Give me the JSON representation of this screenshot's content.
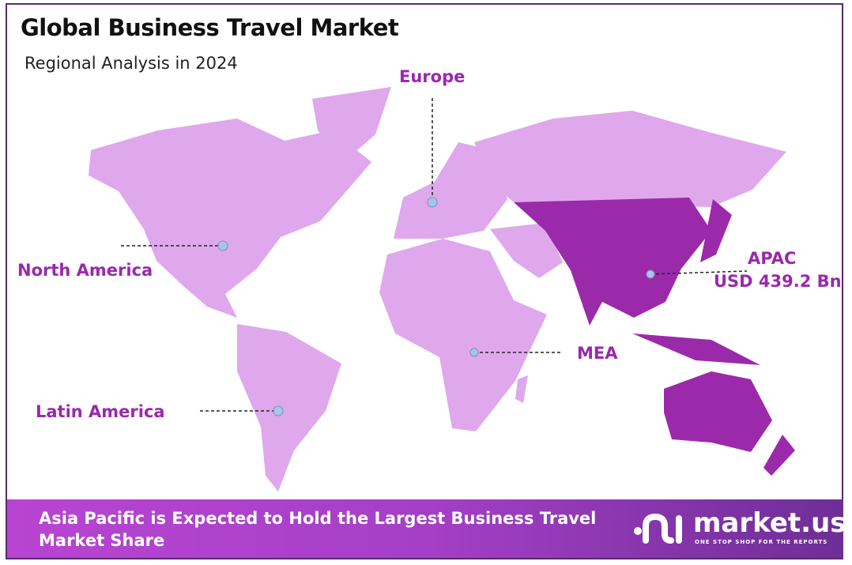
{
  "header": {
    "title": "Global Business Travel Market",
    "subtitle": "Regional Analysis in 2024"
  },
  "regions": [
    {
      "name": "North America",
      "highlighted": false
    },
    {
      "name": "Europe",
      "highlighted": false
    },
    {
      "name": "APAC",
      "value": "USD 439.2 Bn",
      "highlighted": true
    },
    {
      "name": "MEA",
      "highlighted": false
    },
    {
      "name": "Latin America",
      "highlighted": false
    }
  ],
  "colors": {
    "land": "#dfa8ec",
    "highlight": "#9b2aaa",
    "label": "#9a28ae",
    "marker": "#a8c4ee",
    "border": "#5a2a6c"
  },
  "banner": {
    "text": "Asia Pacific is Expected to Hold the Largest Business Travel Market Share"
  },
  "logo": {
    "name": "market.us",
    "tagline": "ONE STOP SHOP FOR THE REPORTS"
  }
}
